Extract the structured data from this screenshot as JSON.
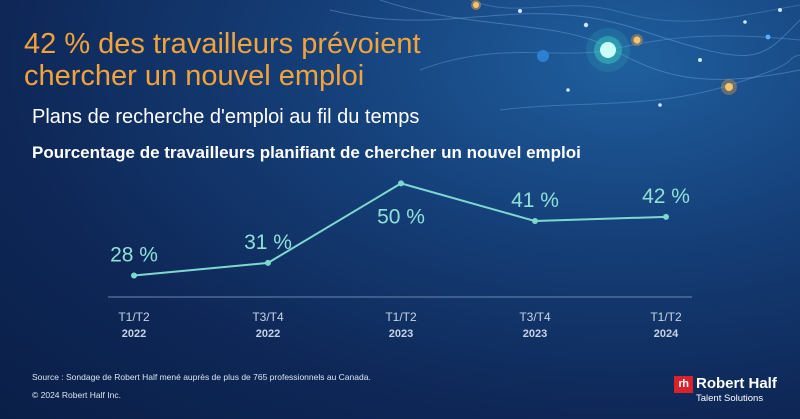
{
  "headline": "42 % des travailleurs prévoient chercher un nouvel emploi",
  "subtitle": "Plans de recherche d'emploi au fil du temps",
  "footer": {
    "source": "Source : Sondage de Robert Half mené auprès de plus de 765 professionnels au Canada.",
    "copyright": "© 2024 Robert Half Inc."
  },
  "brand": {
    "mark": "rh",
    "name": "Robert Half",
    "tagline": "Talent Solutions"
  },
  "colors": {
    "headline": "#f2a33a",
    "line": "#7fd8cf",
    "value_labels": "#8fe0d6",
    "tick_labels": "#c7d3e6"
  },
  "chart_data": {
    "type": "line",
    "title": "Pourcentage de travailleurs planifiant de chercher un nouvel emploi",
    "categories": [
      {
        "period": "T1/T2",
        "year": "2022"
      },
      {
        "period": "T3/T4",
        "year": "2022"
      },
      {
        "period": "T1/T2",
        "year": "2023"
      },
      {
        "period": "T3/T4",
        "year": "2023"
      },
      {
        "period": "T1/T2",
        "year": "2024"
      }
    ],
    "values": [
      28,
      31,
      50,
      41,
      42
    ],
    "value_labels": [
      "28 %",
      "31 %",
      "50 %",
      "41 %",
      "42 %"
    ],
    "unit": "%",
    "ylim": [
      25,
      52
    ],
    "xlabel": "",
    "ylabel": "",
    "grid": false
  }
}
